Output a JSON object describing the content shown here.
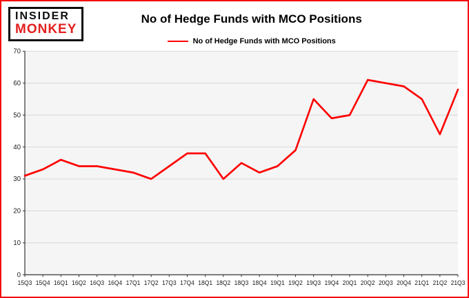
{
  "header": {
    "logo_line1": "INSIDER",
    "logo_line2": "MONKEY",
    "title": "No of Hedge Funds with MCO Positions"
  },
  "legend": {
    "label": "No of Hedge Funds with MCO Positions",
    "color": "#fe0000"
  },
  "colors": {
    "frame_border": "#f40b0b",
    "line": "#fe0000",
    "plot_bg": "#f5f5f5",
    "grid": "#d9d9d9",
    "axis": "#333333",
    "tick_text": "#1a1a1a"
  },
  "chart_data": {
    "type": "line",
    "title": "No of Hedge Funds with MCO Positions",
    "categories": [
      "15Q3",
      "15Q4",
      "16Q1",
      "16Q2",
      "16Q3",
      "16Q4",
      "17Q1",
      "17Q2",
      "17Q3",
      "17Q4",
      "18Q1",
      "18Q2",
      "18Q3",
      "18Q4",
      "19Q1",
      "19Q2",
      "19Q3",
      "19Q4",
      "20Q1",
      "20Q2",
      "20Q3",
      "20Q4",
      "21Q1",
      "21Q2",
      "21Q3"
    ],
    "values": [
      31,
      33,
      36,
      34,
      34,
      33,
      32,
      30,
      34,
      38,
      38,
      30,
      35,
      32,
      34,
      39,
      55,
      49,
      50,
      61,
      60,
      59,
      55,
      44,
      58
    ],
    "xlabel": "",
    "ylabel": "",
    "ylim": [
      0,
      70
    ],
    "yticks": [
      0,
      10,
      20,
      30,
      40,
      50,
      60,
      70
    ],
    "grid": true,
    "legend_position": "top",
    "legend_entries": [
      "No of Hedge Funds with MCO Positions"
    ],
    "line_color": "#fe0000"
  }
}
